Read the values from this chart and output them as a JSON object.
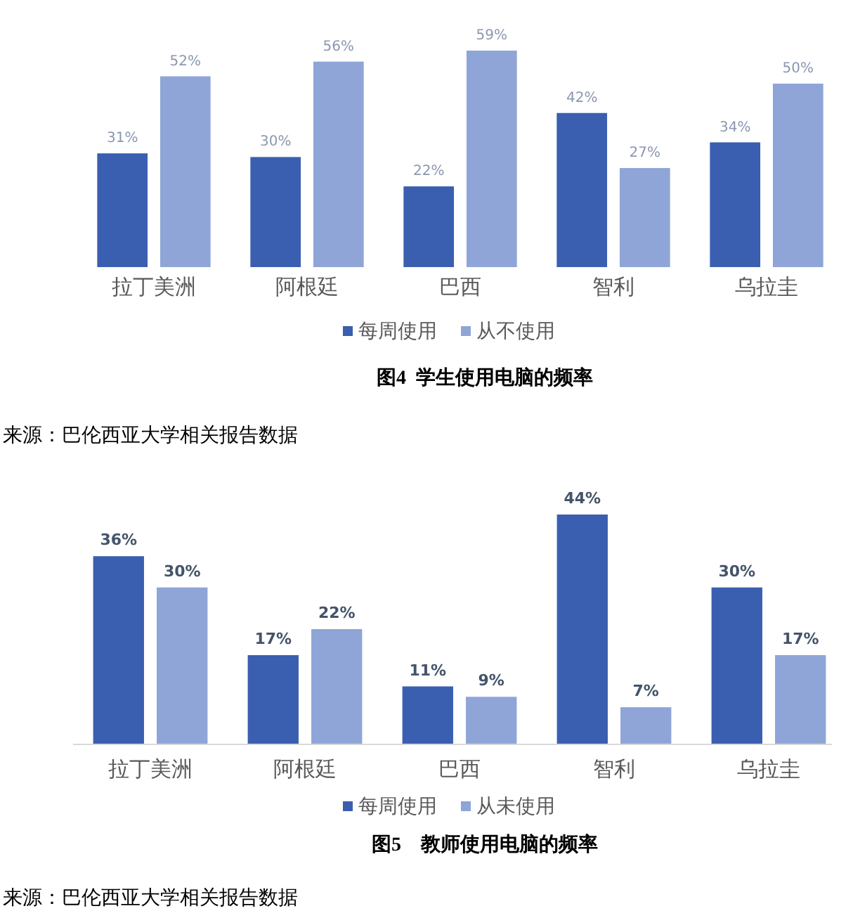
{
  "chart_data": [
    {
      "type": "bar",
      "title": "图4  学生使用电脑的频率",
      "categories": [
        "拉丁美洲",
        "阿根廷",
        "巴西",
        "智利",
        "乌拉圭"
      ],
      "series": [
        {
          "name": "每周使用",
          "color": "#3a5fb0",
          "values": [
            31,
            30,
            22,
            42,
            34
          ],
          "value_labels": [
            "31%",
            "30%",
            "22%",
            "42%",
            "34%"
          ]
        },
        {
          "name": "从不使用",
          "color": "#8fa5d8",
          "values": [
            52,
            56,
            59,
            27,
            50
          ],
          "value_labels": [
            "52%",
            "56%",
            "59%",
            "27%",
            "50%"
          ]
        }
      ],
      "legend": "bottom",
      "grid": false,
      "annotations": [
        "来源：巴伦西亚大学相关报告数据"
      ]
    },
    {
      "type": "bar",
      "title": "图5    教师使用电脑的频率",
      "categories": [
        "拉丁美洲",
        "阿根廷",
        "巴西",
        "智利",
        "乌拉圭"
      ],
      "series": [
        {
          "name": "每周使用",
          "color": "#3a5fb0",
          "values": [
            36,
            17,
            11,
            44,
            30
          ],
          "value_labels": [
            "36%",
            "17%",
            "11%",
            "44%",
            "30%"
          ]
        },
        {
          "name": "从未使用",
          "color": "#8fa5d8",
          "values": [
            30,
            22,
            9,
            7,
            17
          ],
          "value_labels": [
            "30%",
            "22%",
            "9%",
            "7%",
            "17%"
          ]
        }
      ],
      "legend": "bottom",
      "grid": false,
      "annotations": [
        "来源：巴伦西亚大学相关报告数据"
      ]
    }
  ]
}
